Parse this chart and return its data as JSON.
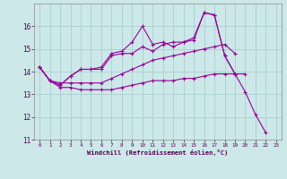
{
  "xlabel": "Windchill (Refroidissement éolien,°C)",
  "x": [
    0,
    1,
    2,
    3,
    4,
    5,
    6,
    7,
    8,
    9,
    10,
    11,
    12,
    13,
    14,
    15,
    16,
    17,
    18,
    19,
    20,
    21,
    22,
    23
  ],
  "line1": [
    14.2,
    13.6,
    13.4,
    13.8,
    14.1,
    14.1,
    14.2,
    14.8,
    14.9,
    15.3,
    16.0,
    15.2,
    15.3,
    15.1,
    15.3,
    15.5,
    16.6,
    16.5,
    14.7,
    13.9,
    13.1,
    12.1,
    11.3,
    null
  ],
  "line2": [
    14.2,
    13.6,
    13.4,
    13.8,
    14.1,
    14.1,
    14.1,
    14.7,
    14.8,
    14.8,
    15.1,
    14.9,
    15.2,
    15.3,
    15.3,
    15.4,
    16.6,
    16.5,
    14.7,
    13.9,
    null,
    null,
    null,
    null
  ],
  "line3": [
    14.2,
    13.6,
    13.5,
    13.5,
    13.5,
    13.5,
    13.5,
    13.7,
    13.9,
    14.1,
    14.3,
    14.5,
    14.6,
    14.7,
    14.8,
    14.9,
    15.0,
    15.1,
    15.2,
    14.8,
    null,
    null,
    null,
    null
  ],
  "line4": [
    14.2,
    13.6,
    13.3,
    13.3,
    13.2,
    13.2,
    13.2,
    13.2,
    13.3,
    13.4,
    13.5,
    13.6,
    13.6,
    13.6,
    13.7,
    13.7,
    13.8,
    13.9,
    13.9,
    13.9,
    13.9,
    null,
    null,
    null
  ],
  "line_color": "#990099",
  "bg_color": "#cce8e8",
  "grid_color": "#aacece",
  "ylim": [
    11,
    17
  ],
  "yticks": [
    11,
    12,
    13,
    14,
    15,
    16
  ],
  "xticks": [
    0,
    1,
    2,
    3,
    4,
    5,
    6,
    7,
    8,
    9,
    10,
    11,
    12,
    13,
    14,
    15,
    16,
    17,
    18,
    19,
    20,
    21,
    22,
    23
  ]
}
